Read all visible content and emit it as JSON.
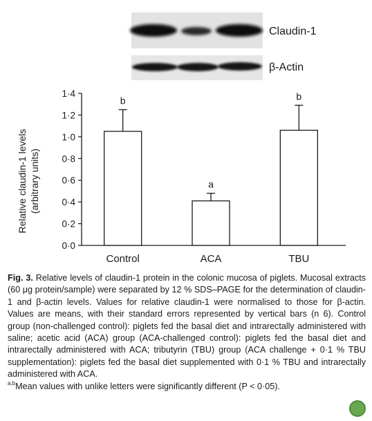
{
  "blot": {
    "band_labels": [
      "Claudin-1",
      "β-Actin"
    ]
  },
  "chart_data": {
    "type": "bar",
    "categories": [
      "Control",
      "ACA",
      "TBU"
    ],
    "values": [
      1.05,
      0.41,
      1.06
    ],
    "error_bars": [
      0.2,
      0.07,
      0.23
    ],
    "significance_letters": [
      "b",
      "a",
      "b"
    ],
    "ylabel_line1": "Relative claudin-1 levels",
    "ylabel_line2": "(arbitrary units)",
    "ylim": [
      0,
      1.4
    ],
    "yticks": [
      "0·0",
      "0·2",
      "0·4",
      "0·6",
      "0·8",
      "1·0",
      "1·2",
      "1·4"
    ],
    "bar_color": "#ffffff",
    "line_color": "#1a1a1a"
  },
  "caption": {
    "label": "Fig. 3.",
    "body": " Relative levels of claudin-1 protein in the colonic mucosa of piglets. Mucosal extracts (60 μg protein/sample) were separated by 12 % SDS–PAGE for the determination of claudin-1 and β-actin levels. Values for relative claudin-1 were normalised to those for β-actin. Values are means, with their standard errors represented by vertical bars (n 6). Control group (non-challenged control): piglets fed the basal diet and intrarectally administered with saline; acetic acid (ACA) group (ACA-challenged control): piglets fed the basal diet and intrarectally administered with ACA; tributyrin (TBU) group (ACA challenge + 0·1 % TBU supplementation): piglets fed the basal diet supplemented with 0·1 % TBU and intrarectally administered with ACA.",
    "footnote_sup": "a,b",
    "footnote": "Mean values with unlike letters were significantly different (P < 0·05)."
  },
  "badge": {
    "icon": "leaf-badge-icon",
    "color": "#6aa84f"
  }
}
